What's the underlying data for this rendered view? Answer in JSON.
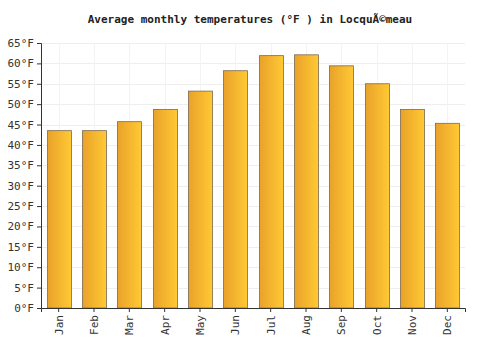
{
  "chart_data": {
    "type": "bar",
    "title": "Average monthly temperatures (°F ) in LocquÃ©meau",
    "categories": [
      "Jan",
      "Feb",
      "Mar",
      "Apr",
      "May",
      "Jun",
      "Jul",
      "Aug",
      "Sep",
      "Oct",
      "Nov",
      "Dec"
    ],
    "values": [
      43.5,
      43.5,
      45.7,
      48.7,
      53.2,
      58.2,
      61.9,
      62.1,
      59.4,
      55.0,
      48.7,
      45.3
    ],
    "color": "#ffb12e",
    "ylim": [
      0,
      65
    ],
    "yticks": [
      {
        "value": 0,
        "label": "0°F"
      },
      {
        "value": 5,
        "label": "5°F"
      },
      {
        "value": 10,
        "label": "10°F"
      },
      {
        "value": 15,
        "label": "15°F"
      },
      {
        "value": 20,
        "label": "20°F"
      },
      {
        "value": 25,
        "label": "25°F"
      },
      {
        "value": 30,
        "label": "30°F"
      },
      {
        "value": 35,
        "label": "35°F"
      },
      {
        "value": 40,
        "label": "40°F"
      },
      {
        "value": 45,
        "label": "45°F"
      },
      {
        "value": 50,
        "label": "50°F"
      },
      {
        "value": 55,
        "label": "55°F"
      },
      {
        "value": 60,
        "label": "60°F"
      },
      {
        "value": 65,
        "label": "65°F"
      }
    ],
    "grid": true
  }
}
